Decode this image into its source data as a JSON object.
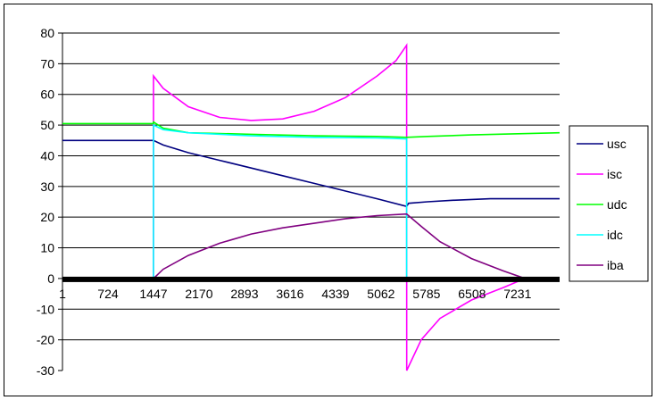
{
  "chart_data": {
    "type": "line",
    "title": "",
    "xlabel": "",
    "ylabel": "",
    "xlim": [
      1,
      7900
    ],
    "ylim": [
      -30,
      80
    ],
    "x_ticks": [
      "1",
      "724",
      "1447",
      "2170",
      "2893",
      "3616",
      "4339",
      "5062",
      "5785",
      "6508",
      "7231"
    ],
    "x_tick_values": [
      1,
      724,
      1447,
      2170,
      2893,
      3616,
      4339,
      5062,
      5785,
      6508,
      7231
    ],
    "y_ticks": [
      "-30",
      "-20",
      "-10",
      "0",
      "10",
      "20",
      "30",
      "40",
      "50",
      "60",
      "70",
      "80"
    ],
    "y_tick_values": [
      -30,
      -20,
      -10,
      0,
      10,
      20,
      30,
      40,
      50,
      60,
      70,
      80
    ],
    "grid": {
      "horizontal": true,
      "vertical": false
    },
    "legend": {
      "placement": "right",
      "entries": [
        "usc",
        "isc",
        "udc",
        "idc",
        "iba"
      ]
    },
    "series": [
      {
        "name": "usc",
        "color": "#000080",
        "x": [
          1,
          1447,
          1600,
          2000,
          2500,
          3000,
          3500,
          4000,
          4500,
          5000,
          5470,
          5500,
          5800,
          6200,
          6800,
          7900
        ],
        "y": [
          45,
          45,
          43.5,
          41,
          38.5,
          36,
          33.5,
          31,
          28.5,
          26,
          23.5,
          24.5,
          25,
          25.5,
          26,
          26
        ]
      },
      {
        "name": "isc",
        "color": "#ff00ff",
        "x": [
          1,
          1446,
          1447,
          1600,
          2000,
          2500,
          3000,
          3500,
          4000,
          4500,
          5000,
          5300,
          5470,
          5471,
          5700,
          6000,
          6500,
          7000,
          7350
        ],
        "y": [
          0,
          0,
          66,
          62,
          56,
          52.5,
          51.5,
          52,
          54.5,
          59,
          66,
          71,
          76,
          -30,
          -20,
          -13,
          -7,
          -3,
          0
        ]
      },
      {
        "name": "udc",
        "color": "#00ff00",
        "x": [
          1,
          1446,
          1447,
          1600,
          2000,
          3000,
          4000,
          5000,
          5470,
          5800,
          6500,
          7900
        ],
        "y": [
          50.5,
          50.5,
          51,
          49,
          47.5,
          47,
          46.5,
          46.3,
          46,
          46.3,
          46.8,
          47.5
        ]
      },
      {
        "name": "idc",
        "color": "#00ffff",
        "x": [
          1,
          1446,
          1447,
          1600,
          2000,
          3000,
          4000,
          5000,
          5469,
          5470,
          7900
        ],
        "y": [
          0,
          0,
          50,
          48.5,
          47.5,
          46.5,
          46,
          45.8,
          45.5,
          0,
          0
        ]
      },
      {
        "name": "iba",
        "color": "#800080",
        "x": [
          1,
          1447,
          1600,
          2000,
          2500,
          3000,
          3500,
          4000,
          4500,
          5000,
          5470,
          5700,
          6000,
          6500,
          7000,
          7350,
          7900
        ],
        "y": [
          0,
          0,
          3,
          7.5,
          11.5,
          14.5,
          16.5,
          18,
          19.5,
          20.5,
          21,
          17,
          12,
          6.5,
          2.5,
          0,
          0
        ]
      }
    ],
    "baseline": {
      "color": "#000000",
      "value": 0
    }
  }
}
